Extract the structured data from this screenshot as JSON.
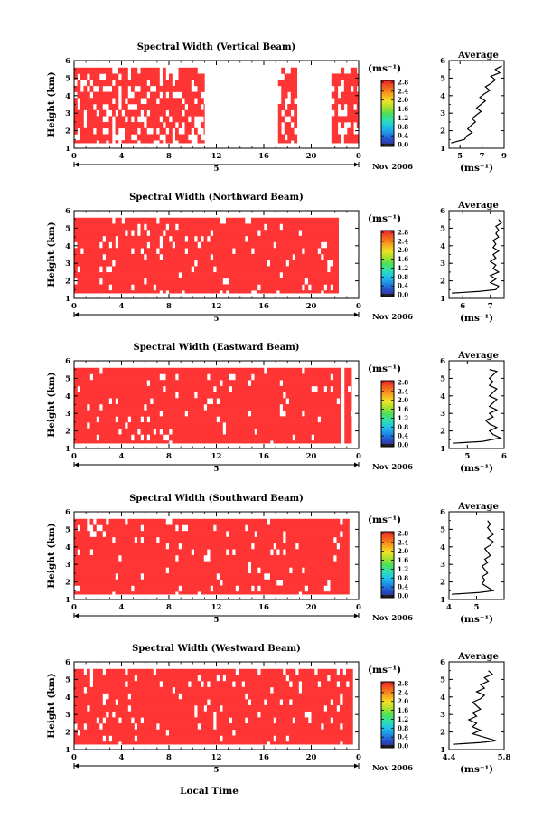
{
  "colors": {
    "cell": "#ff3535",
    "colorbar": [
      "#3a2c8c",
      "#2251c9",
      "#1f8fe6",
      "#1fc4e8",
      "#2ee0b0",
      "#4be05a",
      "#a6e02c",
      "#f2e226",
      "#f7a51e",
      "#f36b1c",
      "#ee2a2a"
    ]
  },
  "icons": [
    "arrow-left-icon",
    "arrow-right-icon"
  ],
  "shared": {
    "x_ticks": [
      "0",
      "4",
      "8",
      "12",
      "16",
      "20",
      "0"
    ],
    "date_lead": "5",
    "date_label": "Nov 2006",
    "y_label": "Height (km)",
    "y_ticks": [
      "1",
      "2",
      "3",
      "4",
      "5",
      "6"
    ],
    "unit_label": "(ms⁻¹)",
    "colorbar_ticks": [
      "0.0",
      "0.4",
      "0.8",
      "1.2",
      "1.6",
      "2.0",
      "2.4",
      "2.8"
    ],
    "avg_title": "Average",
    "avg_unit": "(ms⁻¹)",
    "x_label": "Local Time"
  },
  "chart_data": [
    {
      "type": "heatmap",
      "title": "Spectral Width (Vertical Beam)",
      "xlabel": "",
      "ylabel": "Height (km)",
      "xlim": [
        0,
        24
      ],
      "ylim": [
        1,
        6
      ],
      "row_range_km": [
        1.3,
        5.6
      ],
      "data_spans_h": [
        [
          0,
          11
        ],
        [
          17.2,
          18.8
        ],
        [
          21.7,
          24
        ]
      ],
      "fill_fraction": 0.72,
      "average_profile": {
        "title": "Average",
        "xlim": [
          4,
          9
        ],
        "x_ticks": [
          "5",
          "7",
          "9"
        ],
        "y_ticks": [
          "1",
          "2",
          "3",
          "4",
          "5",
          "6"
        ],
        "points": [
          [
            4.2,
            1.3
          ],
          [
            5.4,
            1.5
          ],
          [
            5.6,
            1.7
          ],
          [
            6.1,
            1.9
          ],
          [
            5.7,
            2.1
          ],
          [
            6.0,
            2.3
          ],
          [
            6.4,
            2.5
          ],
          [
            6.1,
            2.7
          ],
          [
            6.5,
            2.9
          ],
          [
            6.9,
            3.1
          ],
          [
            6.5,
            3.3
          ],
          [
            6.9,
            3.5
          ],
          [
            7.3,
            3.7
          ],
          [
            6.8,
            3.9
          ],
          [
            7.2,
            4.1
          ],
          [
            7.7,
            4.3
          ],
          [
            7.3,
            4.5
          ],
          [
            7.8,
            4.7
          ],
          [
            8.2,
            4.9
          ],
          [
            7.8,
            5.1
          ],
          [
            8.6,
            5.3
          ],
          [
            8.2,
            5.5
          ],
          [
            8.8,
            5.7
          ]
        ]
      }
    },
    {
      "type": "heatmap",
      "title": "Spectral Width (Northward Beam)",
      "xlabel": "",
      "ylabel": "Height (km)",
      "xlim": [
        0,
        24
      ],
      "ylim": [
        1,
        6
      ],
      "row_range_km": [
        1.3,
        5.6
      ],
      "data_spans_h": [
        [
          0,
          22.3
        ]
      ],
      "fill_fraction": 0.92,
      "average_profile": {
        "title": "Average",
        "xlim": [
          5.5,
          7.5
        ],
        "x_ticks": [
          "6",
          "7"
        ],
        "y_ticks": [
          "1",
          "2",
          "3",
          "4",
          "5",
          "6"
        ],
        "points": [
          [
            5.6,
            1.3
          ],
          [
            6.6,
            1.4
          ],
          [
            7.2,
            1.5
          ],
          [
            7.3,
            1.7
          ],
          [
            7.0,
            1.9
          ],
          [
            7.2,
            2.1
          ],
          [
            7.0,
            2.3
          ],
          [
            7.3,
            2.5
          ],
          [
            7.1,
            2.7
          ],
          [
            7.2,
            2.9
          ],
          [
            7.0,
            3.1
          ],
          [
            7.2,
            3.3
          ],
          [
            7.1,
            3.5
          ],
          [
            7.3,
            3.7
          ],
          [
            7.1,
            3.9
          ],
          [
            7.2,
            4.1
          ],
          [
            7.1,
            4.3
          ],
          [
            7.3,
            4.5
          ],
          [
            7.2,
            4.7
          ],
          [
            7.3,
            4.9
          ],
          [
            7.2,
            5.1
          ],
          [
            7.4,
            5.3
          ],
          [
            7.3,
            5.5
          ]
        ]
      }
    },
    {
      "type": "heatmap",
      "title": "Spectral Width (Eastward Beam)",
      "xlabel": "",
      "ylabel": "Height (km)",
      "xlim": [
        0,
        24
      ],
      "ylim": [
        1,
        6
      ],
      "row_range_km": [
        1.3,
        5.6
      ],
      "data_spans_h": [
        [
          0,
          22.5
        ],
        [
          22.8,
          23.4
        ]
      ],
      "fill_fraction": 0.93,
      "average_profile": {
        "title": "Average",
        "xlim": [
          4.5,
          6
        ],
        "x_ticks": [
          "5",
          "6"
        ],
        "y_ticks": [
          "1",
          "2",
          "3",
          "4",
          "5",
          "6"
        ],
        "points": [
          [
            4.6,
            1.3
          ],
          [
            5.4,
            1.4
          ],
          [
            5.9,
            1.6
          ],
          [
            5.7,
            1.8
          ],
          [
            5.6,
            2.0
          ],
          [
            5.8,
            2.2
          ],
          [
            5.6,
            2.4
          ],
          [
            5.5,
            2.6
          ],
          [
            5.7,
            2.8
          ],
          [
            5.6,
            3.0
          ],
          [
            5.8,
            3.2
          ],
          [
            5.6,
            3.4
          ],
          [
            5.7,
            3.6
          ],
          [
            5.8,
            3.8
          ],
          [
            5.6,
            4.0
          ],
          [
            5.7,
            4.2
          ],
          [
            5.8,
            4.4
          ],
          [
            5.6,
            4.6
          ],
          [
            5.7,
            4.8
          ],
          [
            5.6,
            5.0
          ],
          [
            5.7,
            5.2
          ],
          [
            5.8,
            5.4
          ],
          [
            5.6,
            5.5
          ]
        ]
      }
    },
    {
      "type": "heatmap",
      "title": "Spectral Width (Southward Beam)",
      "xlabel": "",
      "ylabel": "Height (km)",
      "xlim": [
        0,
        24
      ],
      "ylim": [
        1,
        6
      ],
      "row_range_km": [
        1.3,
        5.6
      ],
      "data_spans_h": [
        [
          0,
          23.2
        ]
      ],
      "fill_fraction": 0.93,
      "average_profile": {
        "title": "Average",
        "xlim": [
          4,
          6
        ],
        "x_ticks": [
          "4",
          "5"
        ],
        "y_ticks": [
          "1",
          "2",
          "3",
          "4",
          "5",
          "6"
        ],
        "points": [
          [
            4.1,
            1.3
          ],
          [
            5.1,
            1.4
          ],
          [
            5.6,
            1.5
          ],
          [
            5.4,
            1.7
          ],
          [
            5.2,
            1.9
          ],
          [
            5.3,
            2.1
          ],
          [
            5.2,
            2.3
          ],
          [
            5.4,
            2.5
          ],
          [
            5.3,
            2.7
          ],
          [
            5.2,
            2.9
          ],
          [
            5.4,
            3.1
          ],
          [
            5.3,
            3.3
          ],
          [
            5.5,
            3.5
          ],
          [
            5.4,
            3.7
          ],
          [
            5.3,
            3.9
          ],
          [
            5.5,
            4.1
          ],
          [
            5.6,
            4.3
          ],
          [
            5.4,
            4.5
          ],
          [
            5.6,
            4.7
          ],
          [
            5.5,
            4.9
          ],
          [
            5.4,
            5.1
          ],
          [
            5.5,
            5.3
          ],
          [
            5.4,
            5.5
          ]
        ]
      }
    },
    {
      "type": "heatmap",
      "title": "Spectral Width (Westward Beam)",
      "xlabel": "Local Time",
      "ylabel": "Height (km)",
      "xlim": [
        0,
        24
      ],
      "ylim": [
        1,
        6
      ],
      "row_range_km": [
        1.3,
        5.6
      ],
      "data_spans_h": [
        [
          0,
          23.5
        ]
      ],
      "fill_fraction": 0.92,
      "average_profile": {
        "title": "Average",
        "xlim": [
          4.4,
          5.8
        ],
        "x_ticks": [
          "4.4",
          "5.8"
        ],
        "y_ticks": [
          "1",
          "2",
          "3",
          "4",
          "5",
          "6"
        ],
        "points": [
          [
            4.5,
            1.3
          ],
          [
            5.2,
            1.4
          ],
          [
            5.6,
            1.5
          ],
          [
            5.3,
            1.7
          ],
          [
            5.0,
            1.9
          ],
          [
            5.2,
            2.1
          ],
          [
            5.0,
            2.3
          ],
          [
            5.1,
            2.5
          ],
          [
            4.9,
            2.7
          ],
          [
            5.1,
            2.9
          ],
          [
            5.0,
            3.1
          ],
          [
            5.2,
            3.3
          ],
          [
            5.1,
            3.5
          ],
          [
            5.0,
            3.7
          ],
          [
            5.2,
            3.9
          ],
          [
            5.3,
            4.1
          ],
          [
            5.1,
            4.3
          ],
          [
            5.3,
            4.5
          ],
          [
            5.2,
            4.7
          ],
          [
            5.4,
            4.9
          ],
          [
            5.3,
            5.1
          ],
          [
            5.5,
            5.3
          ],
          [
            5.4,
            5.5
          ]
        ]
      }
    }
  ]
}
